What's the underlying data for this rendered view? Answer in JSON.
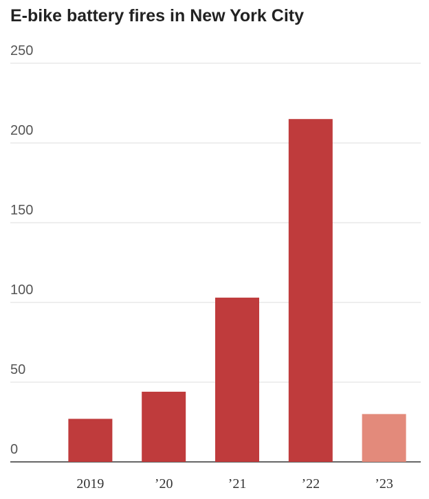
{
  "chart_data": {
    "type": "bar",
    "title": "E-bike battery fires in New York City",
    "categories": [
      "2019",
      "’20",
      "’21",
      "’22",
      "’23"
    ],
    "values": [
      27,
      44,
      103,
      215,
      30
    ],
    "colors": [
      "#bf3b3c",
      "#bf3b3c",
      "#bf3b3c",
      "#bf3b3c",
      "#e38a7b"
    ],
    "ylim": [
      0,
      250
    ],
    "yticks": [
      0,
      50,
      100,
      150,
      200,
      250
    ],
    "grid": true
  }
}
